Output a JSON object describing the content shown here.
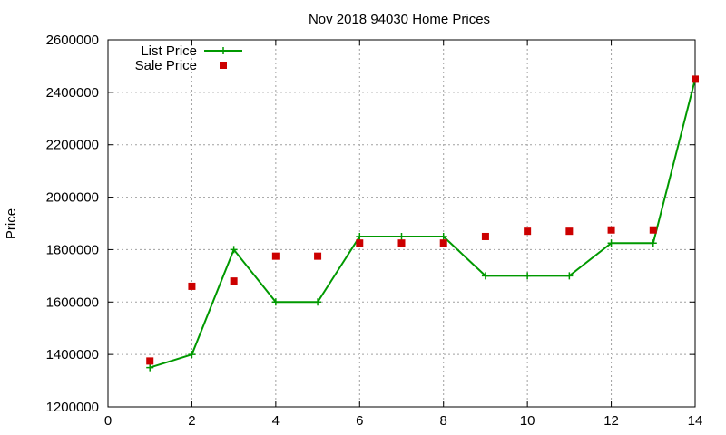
{
  "chart_data": {
    "type": "line",
    "title": "Nov 2018 94030 Home Prices",
    "xlabel": "",
    "ylabel": "Price",
    "xlim": [
      0,
      14
    ],
    "ylim": [
      1200000,
      2600000
    ],
    "x_ticks": [
      0,
      2,
      4,
      6,
      8,
      10,
      12,
      14
    ],
    "y_ticks": [
      1200000,
      1400000,
      1600000,
      1800000,
      2000000,
      2200000,
      2400000,
      2600000
    ],
    "grid": true,
    "legend_position": "top-left",
    "series": [
      {
        "name": "List Price",
        "style": "lines+points",
        "marker": "plus",
        "color": "#009900",
        "x": [
          1,
          2,
          3,
          4,
          5,
          6,
          7,
          8,
          9,
          10,
          11,
          12,
          13,
          14
        ],
        "values": [
          1350000,
          1400000,
          1800000,
          1600000,
          1600000,
          1850000,
          1850000,
          1850000,
          1700000,
          1700000,
          1700000,
          1825000,
          1825000,
          2450000
        ]
      },
      {
        "name": "Sale Price",
        "style": "points",
        "marker": "square",
        "color": "#cc0000",
        "x": [
          1,
          2,
          3,
          4,
          5,
          6,
          7,
          8,
          9,
          10,
          11,
          12,
          13,
          14
        ],
        "values": [
          1375000,
          1660000,
          1680000,
          1775000,
          1775000,
          1825000,
          1825000,
          1825000,
          1850000,
          1870000,
          1870000,
          1875000,
          1875000,
          2450000
        ]
      }
    ]
  }
}
